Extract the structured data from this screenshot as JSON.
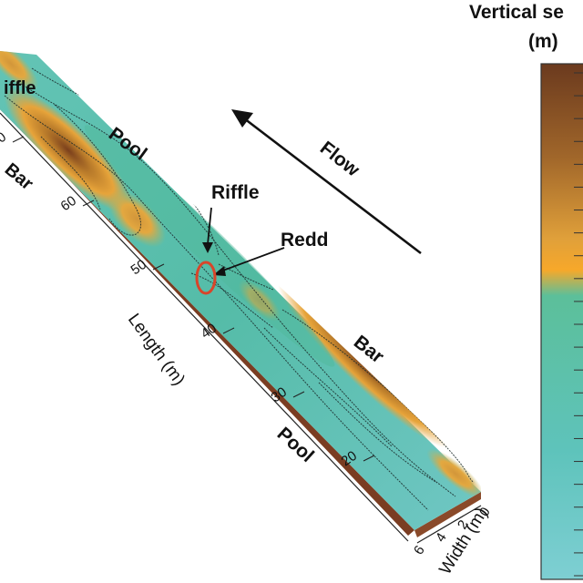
{
  "colorbar": {
    "title_line1": "Vertical se",
    "title_line2": "(m)",
    "colors": {
      "top": "#6b3a1e",
      "upper": "#a0662a",
      "mid_orange": "#f2a52f",
      "green": "#5cbf9a",
      "teal": "#5ec3bb",
      "bottom": "#7ecfd3"
    }
  },
  "labels": {
    "riffle_top": "iffle",
    "bar_left": "Bar",
    "pool_upper": "Pool",
    "riffle": "Riffle",
    "redd": "Redd",
    "flow": "Flow",
    "bar_right": "Bar",
    "pool_lower": "Pool"
  },
  "axes": {
    "length_label": "Length (m)",
    "length_ticks": [
      "70",
      "60",
      "50",
      "40",
      "30",
      "20"
    ],
    "width_label": "Width (m)",
    "width_ticks": [
      "6",
      "4",
      "2",
      "0"
    ]
  },
  "colors": {
    "redd_ellipse": "#d8452a",
    "contour": "#1a2a2a",
    "arrow": "#111111"
  }
}
